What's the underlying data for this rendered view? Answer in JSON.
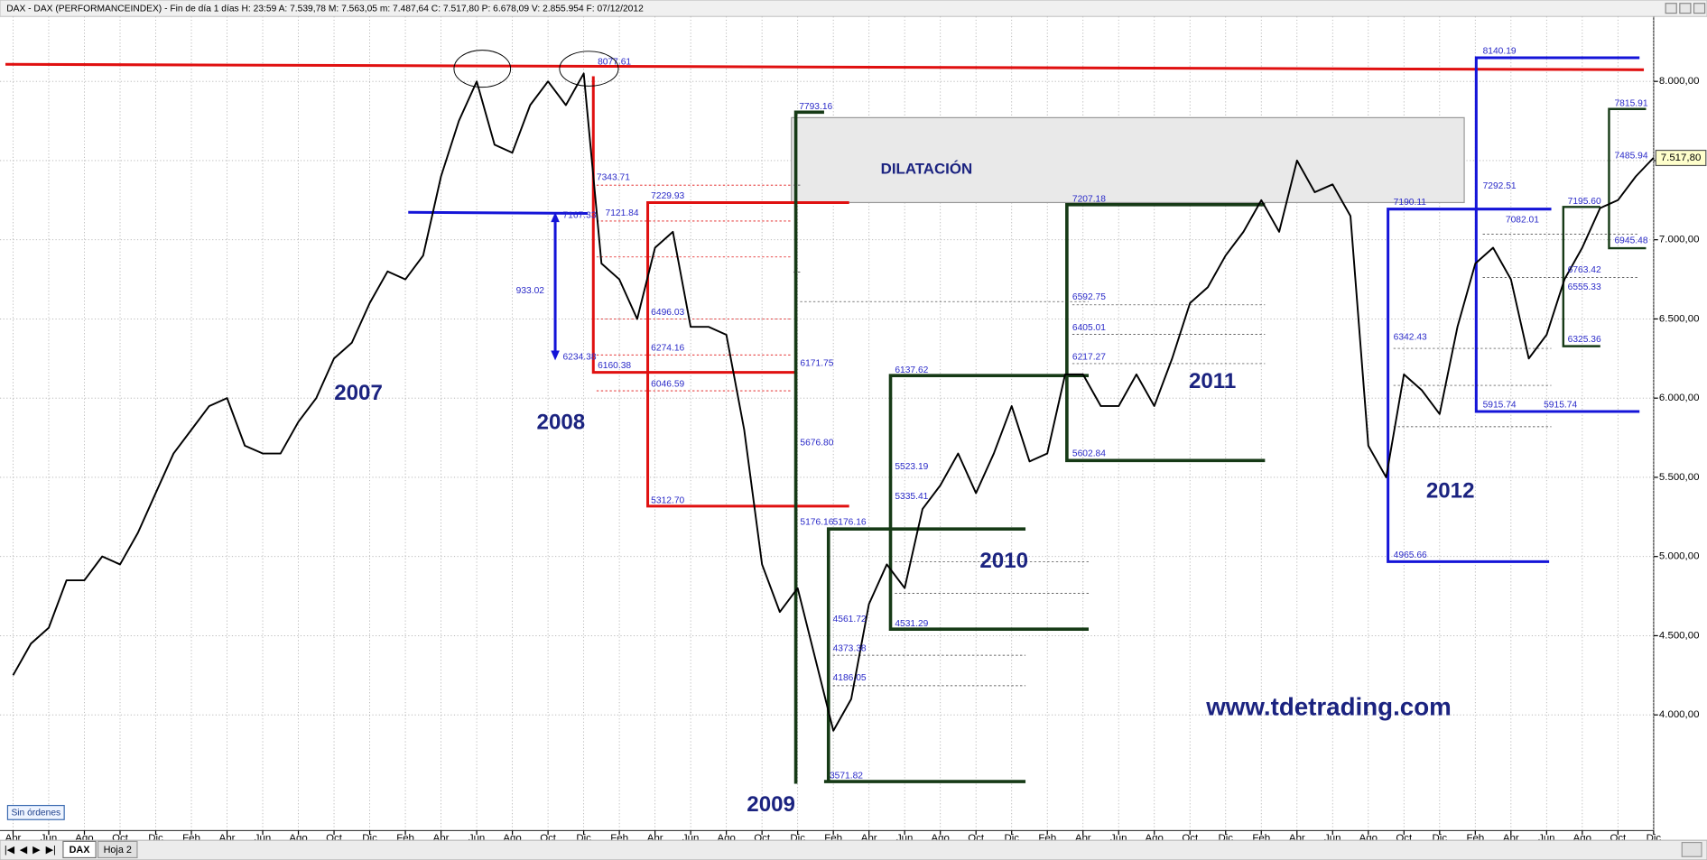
{
  "window": {
    "header": "DAX - DAX (PERFORMANCEINDEX) - Fin de día 1 días  H: 23:59  A: 7.539,78  M: 7.563,05  m: 7.487,64  C: 7.517,80  P: 6.678,09  V: 2.855.954  F: 07/12/2012",
    "status": "Sin órdenes",
    "tabs": [
      "DAX",
      "Hoja 2"
    ],
    "price_tag": "7.517,80"
  },
  "chart_data": {
    "type": "line",
    "color": "#000000",
    "grid": true,
    "categories": [
      "Abr",
      null,
      "Jun",
      null,
      "Ago",
      null,
      "Oct",
      null,
      "Dic",
      null,
      "Feb",
      null,
      "Abr",
      null,
      "Jun",
      null,
      "Ago",
      null,
      "Oct",
      null,
      "Dic",
      null,
      "Feb",
      null,
      "Abr",
      null,
      "Jun",
      null,
      "Ago",
      null,
      "Oct",
      null,
      "Dic",
      null,
      "Feb",
      null,
      "Abr",
      null,
      "Jun",
      null,
      "Ago",
      null,
      "Oct",
      null,
      "Dic",
      null,
      "Feb",
      null,
      "Abr",
      null,
      "Jun",
      null,
      "Ago",
      null,
      "Oct",
      null,
      "Dic",
      null,
      "Feb",
      null,
      "Abr",
      null,
      "Jun",
      null,
      "Ago",
      null,
      "Oct",
      null,
      "Dic",
      null,
      "Feb",
      null,
      "Abr",
      null,
      "Jun",
      null,
      "Ago",
      null,
      "Oct",
      null,
      "Dic",
      null,
      "Feb",
      null,
      "Abr",
      null,
      "Jun",
      null,
      "Ago",
      null,
      "Oct",
      null,
      "Dic"
    ],
    "values": [
      4250,
      4450,
      4550,
      4850,
      4850,
      5000,
      4950,
      5150,
      5400,
      5650,
      5800,
      5950,
      6000,
      5700,
      5650,
      5650,
      5850,
      6000,
      6250,
      6350,
      6600,
      6800,
      6750,
      6900,
      7400,
      7750,
      8000,
      7600,
      7550,
      7850,
      8000,
      7850,
      8050,
      6850,
      6750,
      6500,
      6950,
      7050,
      6450,
      6450,
      6400,
      5800,
      4950,
      4650,
      4800,
      4350,
      3900,
      4100,
      4700,
      4950,
      4800,
      5300,
      5450,
      5650,
      5400,
      5650,
      5950,
      5600,
      5650,
      6150,
      6150,
      5950,
      5950,
      6150,
      5950,
      6250,
      6600,
      6700,
      6900,
      7050,
      7250,
      7050,
      7500,
      7300,
      7350,
      7150,
      5700,
      5500,
      6150,
      6050,
      5900,
      6450,
      6850,
      6950,
      6750,
      6250,
      6400,
      6750,
      6950,
      7200,
      7250,
      7400,
      7517.8
    ],
    "ylim": [
      3270,
      8410
    ],
    "yticks": [
      {
        "value": 4000,
        "label": "4.000,00"
      },
      {
        "value": 4500,
        "label": "4.500,00"
      },
      {
        "value": 5000,
        "label": "5.000,00"
      },
      {
        "value": 5500,
        "label": "5.500,00"
      },
      {
        "value": 6000,
        "label": "6.000,00"
      },
      {
        "value": 6500,
        "label": "6.500,00"
      },
      {
        "value": 7000,
        "label": "7.000,00"
      },
      {
        "value": 7500,
        "label": "7.500,00"
      },
      {
        "value": 8000,
        "label": "8.000,00"
      }
    ],
    "year_labels": [
      "2007",
      "2008",
      "2009",
      "2010",
      "2011",
      "2012"
    ],
    "zone_label": "DILATACIÓN",
    "website": "www.tdetrading.com",
    "annotations": [
      "8077.61",
      "7343.71",
      "7121.84",
      "7167.33",
      "933.02",
      "6234.38",
      "6160.38",
      "7229.93",
      "6496.03",
      "6274.16",
      "6046.59",
      "5312.70",
      "6171.75",
      "7793.16",
      "5676.80",
      "5176.16",
      "5176.16",
      "4561.72",
      "4373.38",
      "4186.05",
      "3571.82",
      "6137.62",
      "5523.19",
      "5335.41",
      "4531.29",
      "7207.18",
      "6592.75",
      "6405.01",
      "6217.27",
      "5602.84",
      "8140.19",
      "7190.11",
      "6342.43",
      "4965.66",
      "7292.51",
      "7082.01",
      "5915.74",
      "5915.74",
      "7815.91",
      "7485.94",
      "7195.60",
      "6945.48",
      "6763.42",
      "6555.33",
      "6325.36"
    ]
  }
}
